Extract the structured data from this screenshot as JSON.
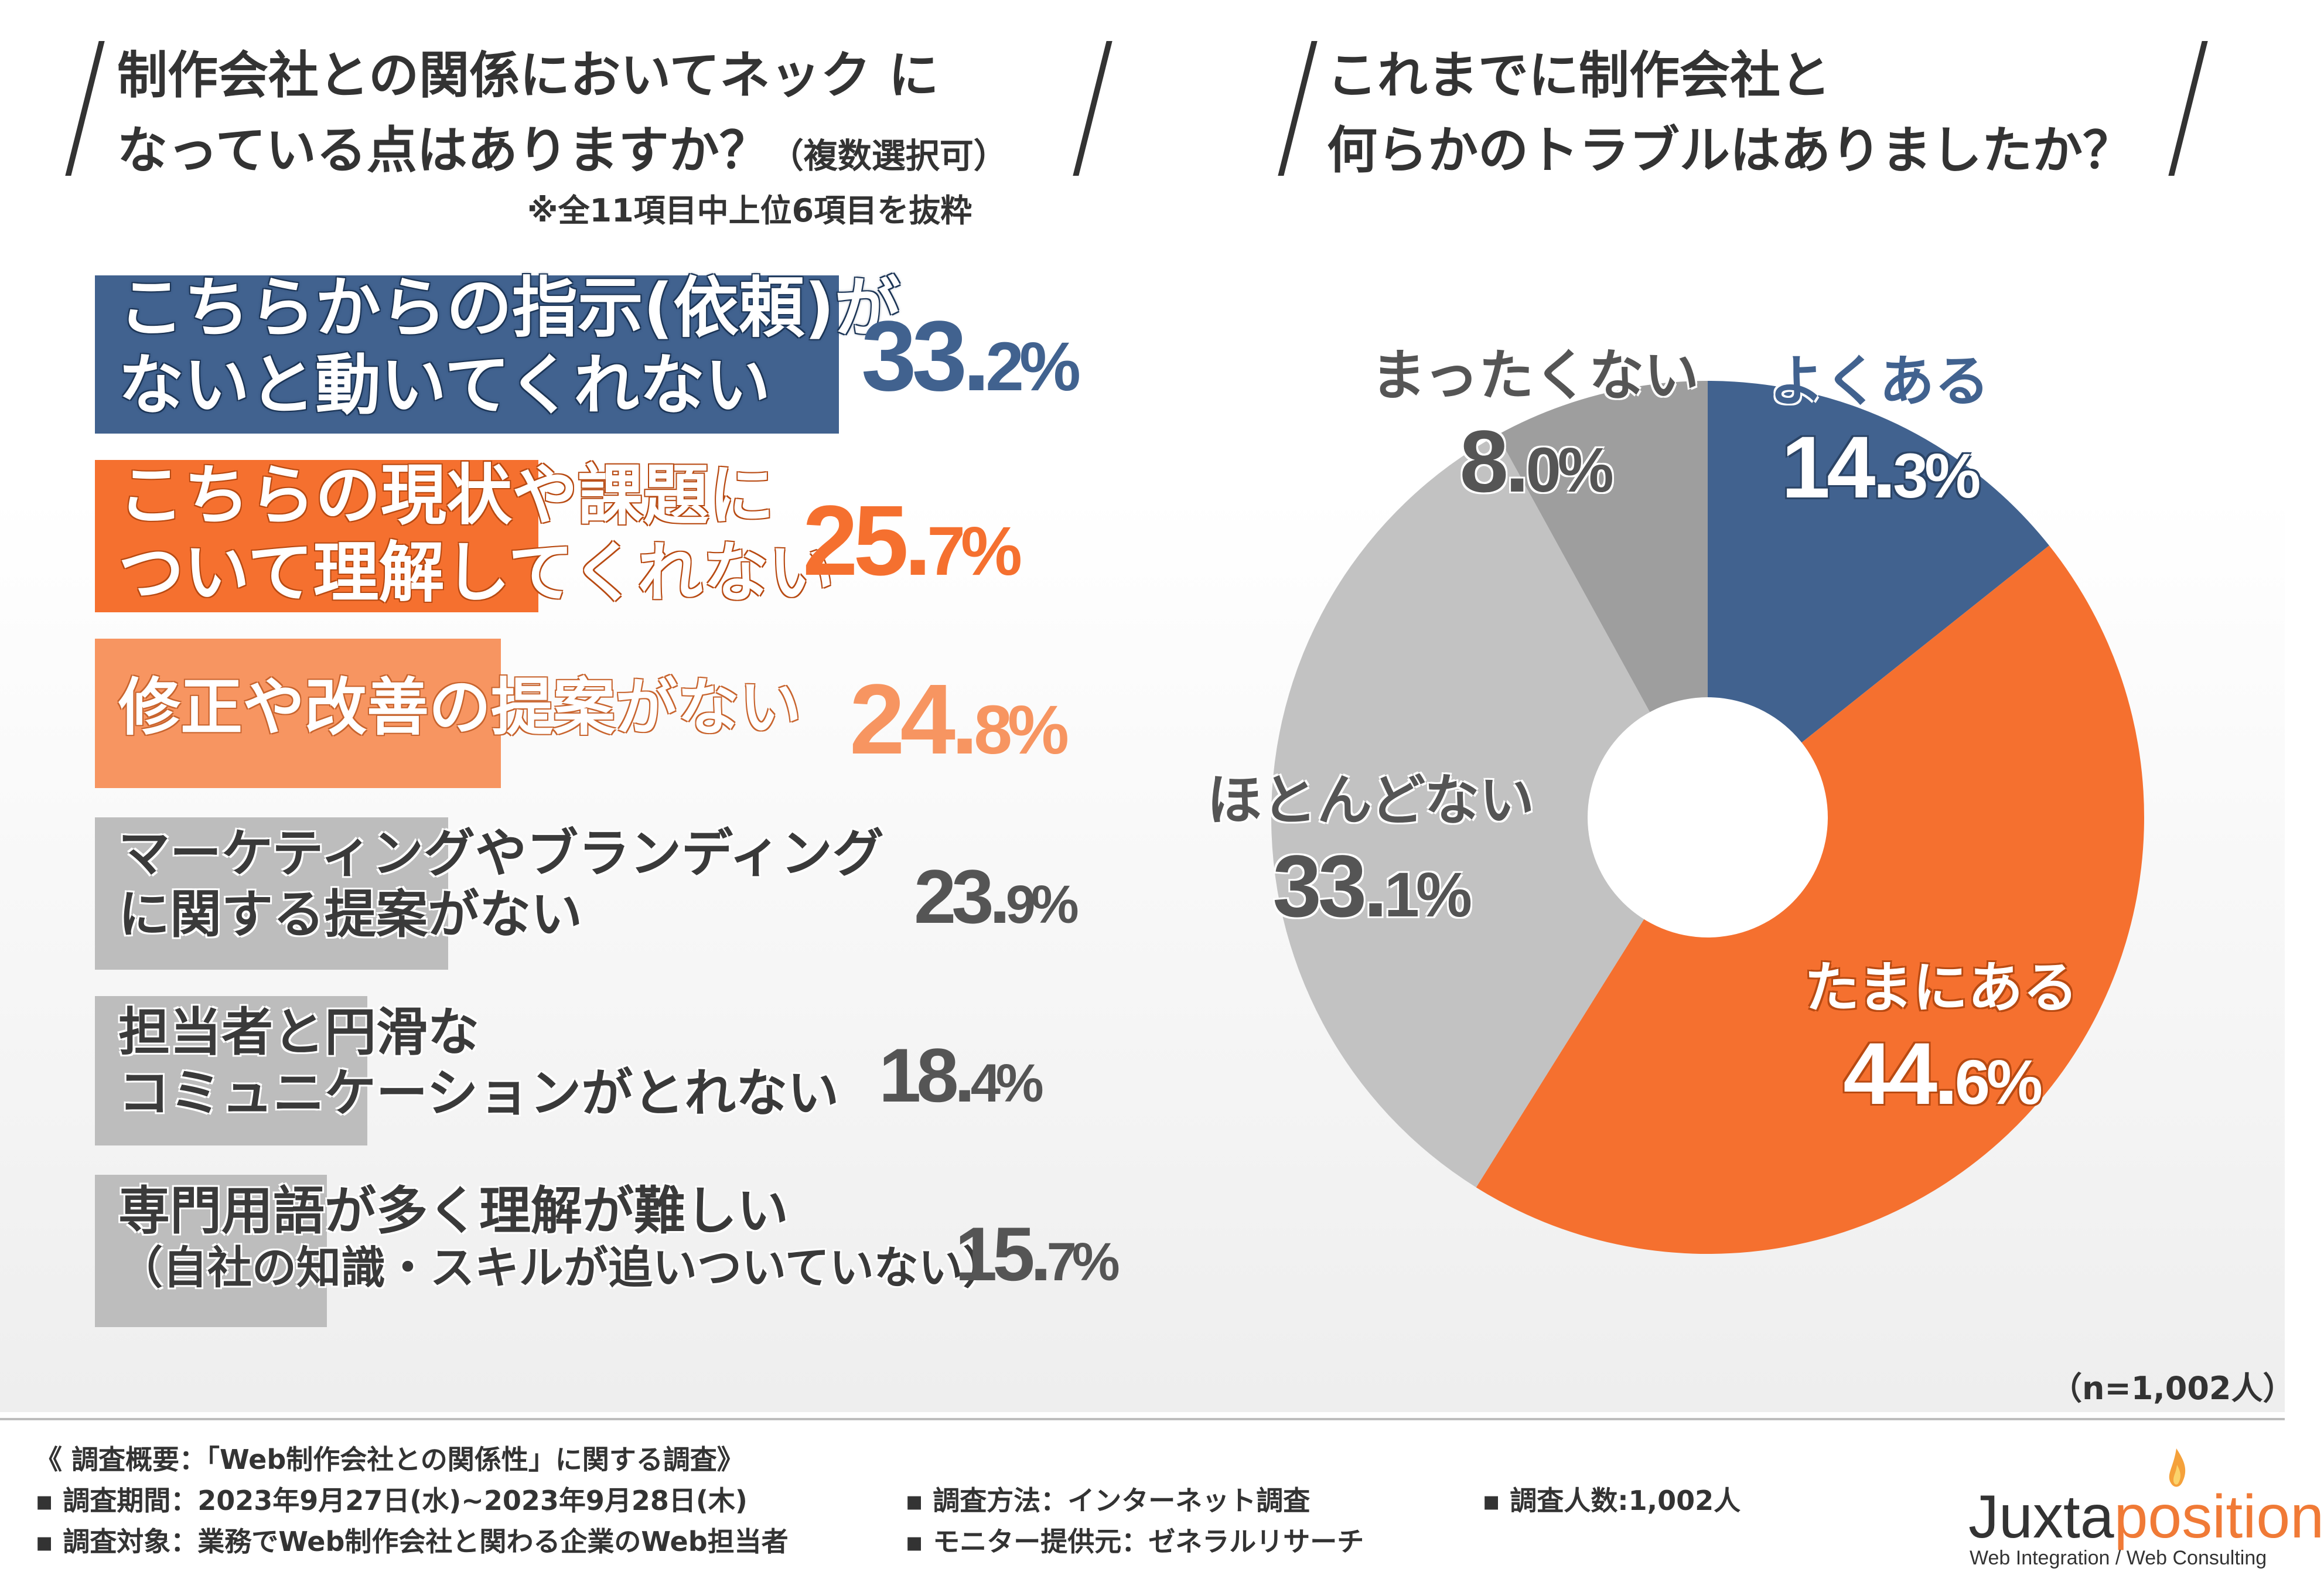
{
  "left": {
    "title_line1": "制作会社との関係においてネック に",
    "title_line2": "なっている点はありますか？",
    "title_sub": "（複数選択可）",
    "note": "※全11項目中上位6項目を抜粋"
  },
  "right": {
    "title_line1": "これまでに制作会社と",
    "title_line2": "何らかのトラブルはありましたか？"
  },
  "chart_data": [
    {
      "type": "bar",
      "orientation": "horizontal",
      "title": "制作会社との関係においてネックになっている点はありますか？（複数選択可）",
      "unit": "%",
      "categories": [
        "こちらからの指示（依頼）がないと動いてくれない",
        "こちらの現状や課題について理解してくれない",
        "修正や改善の提案がない",
        "マーケティングやブランディングに関する提案がない",
        "担当者と円滑なコミュニケーションがとれない",
        "専門用語が多く理解が難しい（自社の知識・スキルが追いついていない）"
      ],
      "labels": [
        [
          "こちらからの指示(依頼)が",
          "ないと動いてくれない"
        ],
        [
          "こちらの現状や課題に",
          "ついて理解してくれない"
        ],
        [
          "修正や改善の提案がない"
        ],
        [
          "マーケティングやブランディング",
          "に関する提案がない"
        ],
        [
          "担当者と円滑な",
          "コミュニケーションがとれない"
        ],
        [
          "専門用語が多く理解が難しい",
          "（自社の知識・スキルが追いついていない）"
        ]
      ],
      "values": [
        33.2,
        25.7,
        24.8,
        23.9,
        18.4,
        15.7
      ],
      "value_labels": [
        {
          "int": "33.",
          "dec": "2%"
        },
        {
          "int": "25.",
          "dec": "7%"
        },
        {
          "int": "24.",
          "dec": "8%"
        },
        {
          "int": "23.",
          "dec": "9%"
        },
        {
          "int": "18.",
          "dec": "4%"
        },
        {
          "int": "15.",
          "dec": "7%"
        }
      ],
      "colors": [
        "#41628f",
        "#f5702f",
        "#f79561",
        "#bdbdbd",
        "#bdbdbd",
        "#bdbdbd"
      ],
      "xlim": [
        0,
        33.2
      ]
    },
    {
      "type": "pie",
      "title": "これまでに制作会社と何らかのトラブルはありましたか？",
      "categories": [
        "よくある",
        "たまにある",
        "ほとんどない",
        "まったくない"
      ],
      "values": [
        14.3,
        44.6,
        33.1,
        8.0
      ],
      "value_labels": [
        {
          "int": "14.",
          "dec": "3%"
        },
        {
          "int": "44.",
          "dec": "6%"
        },
        {
          "int": "33.",
          "dec": "1%"
        },
        {
          "int": "8.",
          "dec": "0%"
        }
      ],
      "colors": [
        "#41628f",
        "#f5702f",
        "#c2c2c2",
        "#9e9e9e"
      ],
      "label_colors": [
        "#41628f",
        "#ffffff",
        "#555555",
        "#555555"
      ],
      "donut_hole": true,
      "sample": "（n=1,002人）"
    }
  ],
  "footer": {
    "overview": "《 調査概要：「Web制作会社との関係性」に関する調査》",
    "period": "▪ 調査期間：2023年9月27日(水)~2023年9月28日(木)",
    "target": "▪ 調査対象：業務でWeb制作会社と関わる企業のWeb担当者",
    "method": "▪ 調査方法：インターネット調査",
    "provider": "▪ モニター提供元：ゼネラルリサーチ",
    "count": "▪ 調査人数:1,002人"
  },
  "logo": {
    "part1": "Juxta",
    "part2": "position",
    "sub": "Web Integration / Web Consulting",
    "accent": "#f07a36"
  }
}
